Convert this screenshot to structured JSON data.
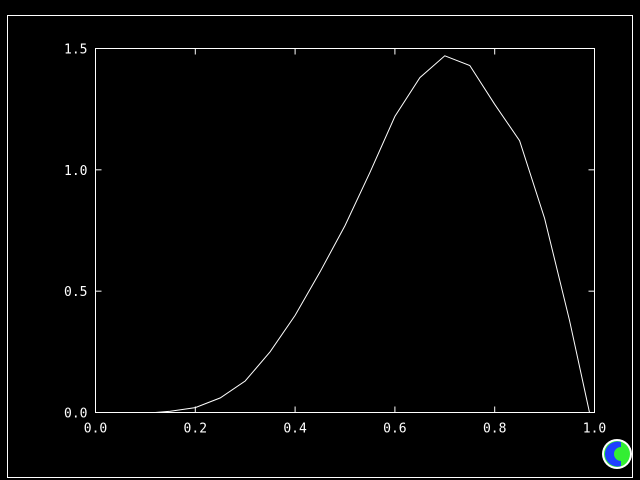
{
  "chart_data": {
    "type": "line",
    "title": "",
    "xlabel": "",
    "ylabel": "",
    "xlim": [
      0.0,
      1.0
    ],
    "ylim": [
      0.0,
      1.5
    ],
    "grid": false,
    "x_ticks": [
      "0.0",
      "0.2",
      "0.4",
      "0.6",
      "0.8",
      "1.0"
    ],
    "y_ticks": [
      "0.0",
      "0.5",
      "1.0",
      "1.5"
    ],
    "series": [
      {
        "x": [
          0.12,
          0.15,
          0.2,
          0.25,
          0.3,
          0.35,
          0.4,
          0.45,
          0.5,
          0.55,
          0.6,
          0.65,
          0.7,
          0.75,
          0.8,
          0.85,
          0.9,
          0.95,
          0.99
        ],
        "y": [
          0.0,
          0.005,
          0.02,
          0.06,
          0.13,
          0.25,
          0.4,
          0.58,
          0.77,
          0.99,
          1.22,
          1.38,
          1.47,
          1.43,
          1.27,
          1.12,
          0.8,
          0.38,
          0.0
        ]
      }
    ],
    "colors": {
      "background": "#000000",
      "axes": "#ffffff",
      "line": "#ffffff"
    }
  },
  "logo": {
    "name": "c-logo",
    "colors": [
      "#1f3fff",
      "#33ee33"
    ]
  }
}
